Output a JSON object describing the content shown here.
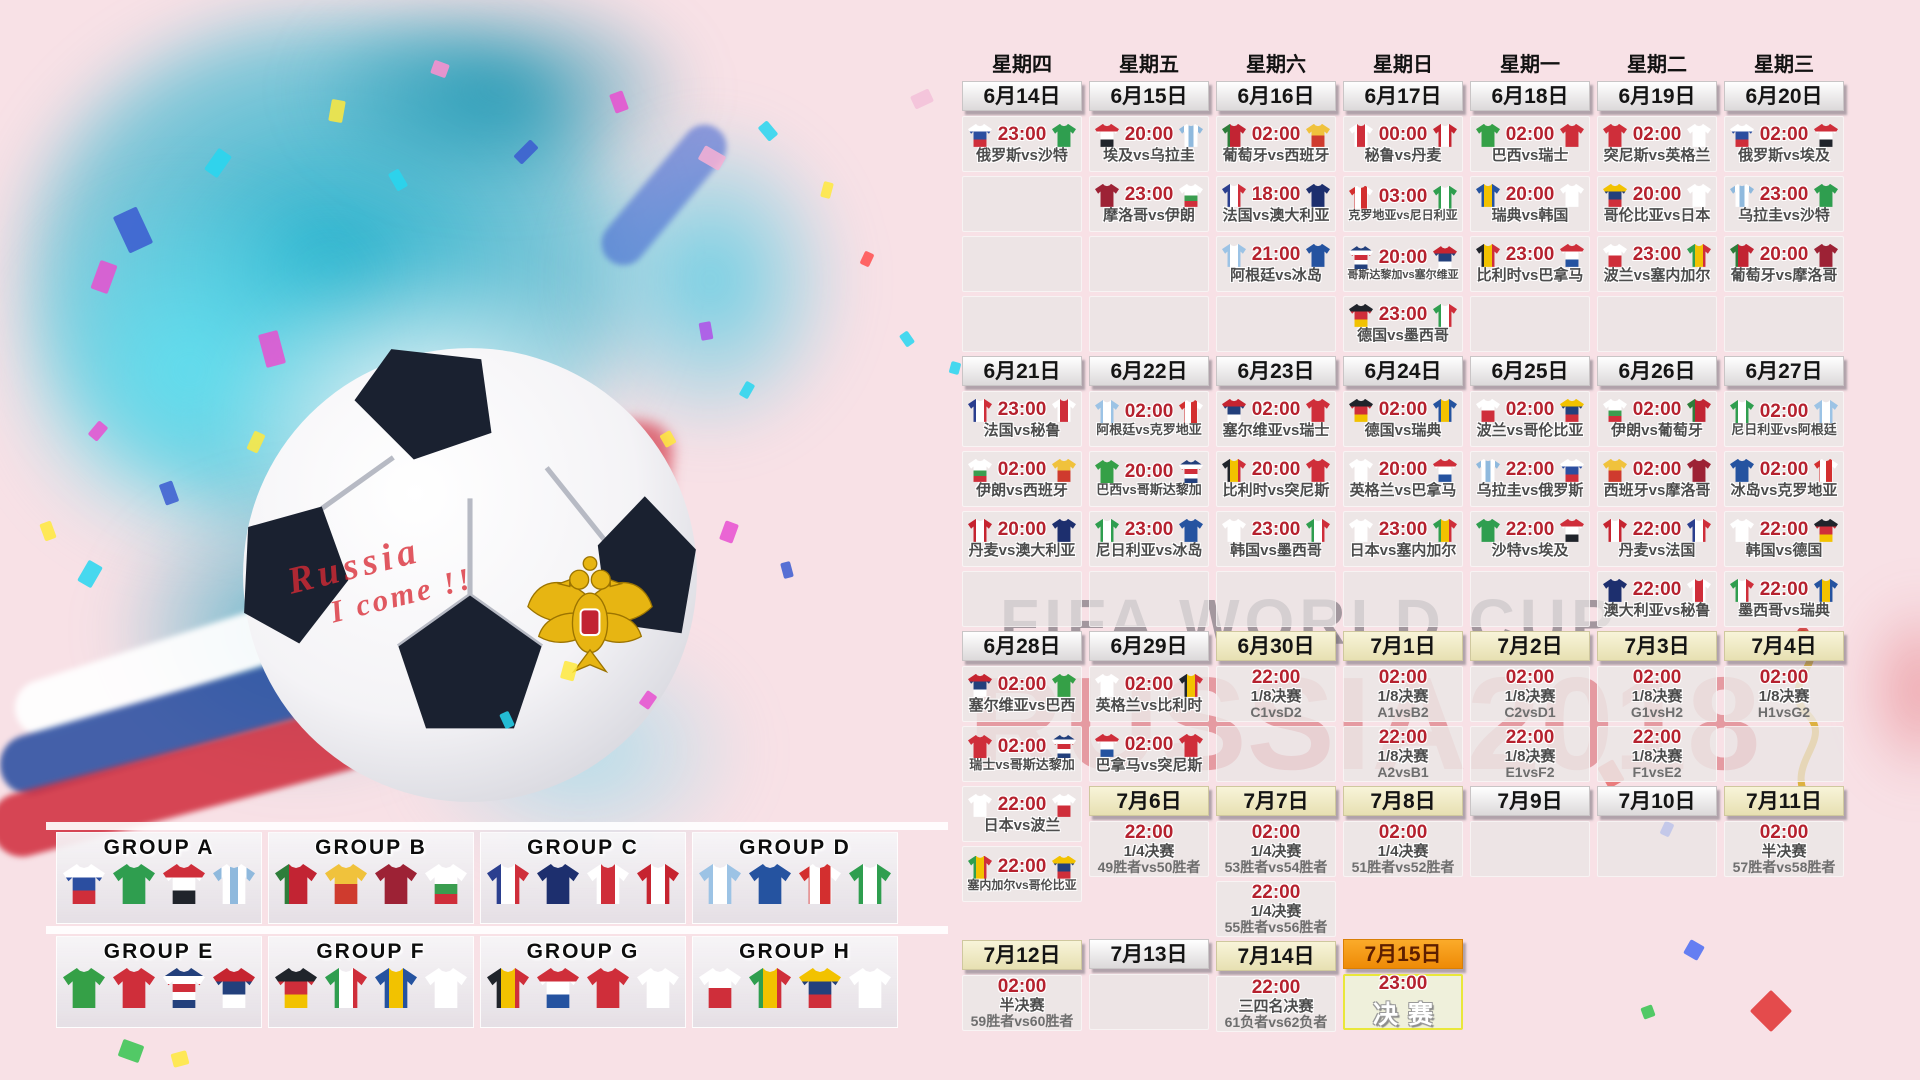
{
  "vs_label": "vs",
  "watermark": {
    "line1": "FIFA WORLD CUP",
    "line2": "RUSSIA2018"
  },
  "ball_text": {
    "line1": "Russia",
    "line2": "I come !!"
  },
  "palette": {
    "background_pink": "#f8e1e6",
    "splash_teal": "#19b4cd",
    "time_red": "#b5212e",
    "date_plain": "#ffffff",
    "date_cream": "#f1ecc8",
    "date_orange": "#f59a1d",
    "final_border_yellow": "#e9e73a",
    "watermark_red": "#c61c28"
  },
  "weekdays": [
    "星期四",
    "星期五",
    "星期六",
    "星期日",
    "星期一",
    "星期二",
    "星期三"
  ],
  "teams": {
    "俄罗斯": {
      "d": "v",
      "c": [
        "#ffffff",
        "#2b4ea0",
        "#cf2e3a"
      ]
    },
    "沙特": {
      "d": "v",
      "c": [
        "#2f9e4f"
      ]
    },
    "埃及": {
      "d": "v",
      "c": [
        "#cf2e3a",
        "#ffffff",
        "#20242b"
      ]
    },
    "乌拉圭": {
      "d": "h",
      "c": [
        "#8fb9dd",
        "#ffffff",
        "#8fb9dd",
        "#ffffff",
        "#8fb9dd"
      ]
    },
    "葡萄牙": {
      "d": "h",
      "c": [
        "#2e7d3a",
        "#c22433",
        "#c22433"
      ]
    },
    "西班牙": {
      "d": "v",
      "c": [
        "#f0c23c",
        "#cf3b2e"
      ]
    },
    "摩洛哥": {
      "d": "v",
      "c": [
        "#9d2235"
      ]
    },
    "伊朗": {
      "d": "v",
      "c": [
        "#ffffff",
        "#ffffff",
        "#3a9d4f",
        "#cf2e3a"
      ]
    },
    "法国": {
      "d": "h",
      "c": [
        "#2b3f8f",
        "#ffffff",
        "#cf2e3a"
      ]
    },
    "澳大利亚": {
      "d": "v",
      "c": [
        "#1d2f6e"
      ]
    },
    "阿根廷": {
      "d": "h",
      "c": [
        "#9cc3e5",
        "#ffffff",
        "#9cc3e5"
      ]
    },
    "冰岛": {
      "d": "v",
      "c": [
        "#2553a0"
      ]
    },
    "秘鲁": {
      "d": "h",
      "c": [
        "#ffffff",
        "#cf2e3a",
        "#ffffff"
      ]
    },
    "丹麦": {
      "d": "h",
      "c": [
        "#c62430",
        "#ffffff",
        "#c62430"
      ]
    },
    "克罗地亚": {
      "d": "h",
      "c": [
        "#d32f2f",
        "#ffffff",
        "#d32f2f",
        "#ffffff"
      ]
    },
    "尼日利亚": {
      "d": "h",
      "c": [
        "#2f9e4f",
        "#ffffff",
        "#2f9e4f"
      ]
    },
    "哥斯达黎加": {
      "d": "v",
      "c": [
        "#23407c",
        "#ffffff",
        "#cf2e3a",
        "#ffffff",
        "#23407c"
      ]
    },
    "塞尔维亚": {
      "d": "v",
      "c": [
        "#c62430",
        "#23407c",
        "#ffffff"
      ]
    },
    "德国": {
      "d": "v",
      "c": [
        "#20242b",
        "#cf2e3a",
        "#f2c200"
      ]
    },
    "墨西哥": {
      "d": "h",
      "c": [
        "#2f9e4f",
        "#ffffff",
        "#cf2e3a"
      ]
    },
    "巴西": {
      "d": "v",
      "c": [
        "#35a047"
      ]
    },
    "瑞士": {
      "d": "v",
      "c": [
        "#cf2e3a"
      ]
    },
    "瑞典": {
      "d": "h",
      "c": [
        "#2553a0",
        "#f2c200",
        "#2553a0"
      ]
    },
    "韩国": {
      "d": "v",
      "c": [
        "#ffffff"
      ]
    },
    "比利时": {
      "d": "h",
      "c": [
        "#20242b",
        "#f2c200",
        "#cf2e3a"
      ]
    },
    "巴拿马": {
      "d": "v",
      "c": [
        "#cf2e3a",
        "#ffffff",
        "#2553a0"
      ]
    },
    "突尼斯": {
      "d": "v",
      "c": [
        "#cf2e3a"
      ]
    },
    "英格兰": {
      "d": "v",
      "c": [
        "#ffffff"
      ]
    },
    "哥伦比亚": {
      "d": "v",
      "c": [
        "#f2c200",
        "#23407c",
        "#cf2e3a"
      ]
    },
    "日本": {
      "d": "v",
      "c": [
        "#ffffff"
      ]
    },
    "波兰": {
      "d": "v",
      "c": [
        "#ffffff",
        "#cf2e3a"
      ]
    },
    "塞内加尔": {
      "d": "h",
      "c": [
        "#2f9e4f",
        "#f2c200",
        "#cf2e3a"
      ]
    }
  },
  "columns": [
    {
      "items": [
        {
          "t": "d",
          "l": "6月14日",
          "v": "plain"
        },
        {
          "t": "m",
          "ti": "23:00",
          "h": "俄罗斯",
          "a": "沙特"
        },
        {
          "t": "e"
        },
        {
          "t": "e"
        },
        {
          "t": "e"
        },
        {
          "t": "d",
          "l": "6月21日",
          "v": "plain"
        },
        {
          "t": "m",
          "ti": "23:00",
          "h": "法国",
          "a": "秘鲁"
        },
        {
          "t": "m",
          "ti": "02:00",
          "h": "伊朗",
          "a": "西班牙"
        },
        {
          "t": "m",
          "ti": "20:00",
          "h": "丹麦",
          "a": "澳大利亚"
        },
        {
          "t": "e"
        },
        {
          "t": "d",
          "l": "6月28日",
          "v": "plain"
        },
        {
          "t": "m",
          "ti": "02:00",
          "h": "塞尔维亚",
          "a": "巴西"
        },
        {
          "t": "m",
          "ti": "02:00",
          "h": "瑞士",
          "a": "哥斯达黎加"
        },
        {
          "t": "m",
          "ti": "22:00",
          "h": "日本",
          "a": "波兰"
        },
        {
          "t": "m",
          "ti": "22:00",
          "h": "塞内加尔",
          "a": "哥伦比亚"
        },
        {
          "t": "s",
          "hp": 34
        },
        {
          "t": "d",
          "l": "7月12日",
          "v": "cream"
        },
        {
          "t": "k",
          "ti": "02:00",
          "r": "半决赛",
          "f": "59胜者vs60胜者"
        }
      ]
    },
    {
      "items": [
        {
          "t": "d",
          "l": "6月15日",
          "v": "plain"
        },
        {
          "t": "m",
          "ti": "20:00",
          "h": "埃及",
          "a": "乌拉圭"
        },
        {
          "t": "m",
          "ti": "23:00",
          "h": "摩洛哥",
          "a": "伊朗"
        },
        {
          "t": "e"
        },
        {
          "t": "e"
        },
        {
          "t": "d",
          "l": "6月22日",
          "v": "plain"
        },
        {
          "t": "m",
          "ti": "02:00",
          "h": "阿根廷",
          "a": "克罗地亚"
        },
        {
          "t": "m",
          "ti": "20:00",
          "h": "巴西",
          "a": "哥斯达黎加"
        },
        {
          "t": "m",
          "ti": "23:00",
          "h": "尼日利亚",
          "a": "冰岛"
        },
        {
          "t": "e"
        },
        {
          "t": "d",
          "l": "6月29日",
          "v": "plain"
        },
        {
          "t": "m",
          "ti": "02:00",
          "h": "英格兰",
          "a": "比利时"
        },
        {
          "t": "m",
          "ti": "02:00",
          "h": "巴拿马",
          "a": "突尼斯"
        },
        {
          "t": "d",
          "l": "7月6日",
          "v": "cream"
        },
        {
          "t": "k",
          "ti": "22:00",
          "r": "1/4决赛",
          "f": "49胜者vs50胜者"
        },
        {
          "t": "s",
          "hp": 58
        },
        {
          "t": "d",
          "l": "7月13日",
          "v": "plain"
        },
        {
          "t": "e"
        }
      ]
    },
    {
      "items": [
        {
          "t": "d",
          "l": "6月16日",
          "v": "plain"
        },
        {
          "t": "m",
          "ti": "02:00",
          "h": "葡萄牙",
          "a": "西班牙"
        },
        {
          "t": "m",
          "ti": "18:00",
          "h": "法国",
          "a": "澳大利亚"
        },
        {
          "t": "m",
          "ti": "21:00",
          "h": "阿根廷",
          "a": "冰岛"
        },
        {
          "t": "e"
        },
        {
          "t": "d",
          "l": "6月23日",
          "v": "plain"
        },
        {
          "t": "m",
          "ti": "02:00",
          "h": "塞尔维亚",
          "a": "瑞士"
        },
        {
          "t": "m",
          "ti": "20:00",
          "h": "比利时",
          "a": "突尼斯"
        },
        {
          "t": "m",
          "ti": "23:00",
          "h": "韩国",
          "a": "墨西哥"
        },
        {
          "t": "e"
        },
        {
          "t": "d",
          "l": "6月30日",
          "v": "cream"
        },
        {
          "t": "k",
          "ti": "22:00",
          "r": "1/8决赛",
          "f": "C1vsD2"
        },
        {
          "t": "e"
        },
        {
          "t": "d",
          "l": "7月7日",
          "v": "cream"
        },
        {
          "t": "k",
          "ti": "02:00",
          "r": "1/4决赛",
          "f": "53胜者vs54胜者"
        },
        {
          "t": "k",
          "ti": "22:00",
          "r": "1/4决赛",
          "f": "55胜者vs56胜者"
        },
        {
          "t": "d",
          "l": "7月14日",
          "v": "cream"
        },
        {
          "t": "k",
          "ti": "22:00",
          "r": "三四名决赛",
          "f": "61负者vs62负者"
        }
      ]
    },
    {
      "items": [
        {
          "t": "d",
          "l": "6月17日",
          "v": "plain"
        },
        {
          "t": "m",
          "ti": "00:00",
          "h": "秘鲁",
          "a": "丹麦"
        },
        {
          "t": "m",
          "ti": "03:00",
          "h": "克罗地亚",
          "a": "尼日利亚"
        },
        {
          "t": "m",
          "ti": "20:00",
          "h": "哥斯达黎加",
          "a": "塞尔维亚"
        },
        {
          "t": "m",
          "ti": "23:00",
          "h": "德国",
          "a": "墨西哥"
        },
        {
          "t": "d",
          "l": "6月24日",
          "v": "plain"
        },
        {
          "t": "m",
          "ti": "02:00",
          "h": "德国",
          "a": "瑞典"
        },
        {
          "t": "m",
          "ti": "20:00",
          "h": "英格兰",
          "a": "巴拿马"
        },
        {
          "t": "m",
          "ti": "23:00",
          "h": "日本",
          "a": "塞内加尔"
        },
        {
          "t": "e"
        },
        {
          "t": "d",
          "l": "7月1日",
          "v": "cream"
        },
        {
          "t": "k",
          "ti": "02:00",
          "r": "1/8决赛",
          "f": "A1vsB2"
        },
        {
          "t": "k",
          "ti": "22:00",
          "r": "1/8决赛",
          "f": "A2vsB1"
        },
        {
          "t": "d",
          "l": "7月8日",
          "v": "cream"
        },
        {
          "t": "k",
          "ti": "02:00",
          "r": "1/4决赛",
          "f": "51胜者vs52胜者"
        },
        {
          "t": "s",
          "hp": 58
        },
        {
          "t": "d",
          "l": "7月15日",
          "v": "orange"
        },
        {
          "t": "f",
          "ti": "23:00",
          "l": "决赛"
        }
      ]
    },
    {
      "items": [
        {
          "t": "d",
          "l": "6月18日",
          "v": "plain"
        },
        {
          "t": "m",
          "ti": "02:00",
          "h": "巴西",
          "a": "瑞士"
        },
        {
          "t": "m",
          "ti": "20:00",
          "h": "瑞典",
          "a": "韩国"
        },
        {
          "t": "m",
          "ti": "23:00",
          "h": "比利时",
          "a": "巴拿马"
        },
        {
          "t": "e"
        },
        {
          "t": "d",
          "l": "6月25日",
          "v": "plain"
        },
        {
          "t": "m",
          "ti": "02:00",
          "h": "波兰",
          "a": "哥伦比亚"
        },
        {
          "t": "m",
          "ti": "22:00",
          "h": "乌拉圭",
          "a": "俄罗斯"
        },
        {
          "t": "m",
          "ti": "22:00",
          "h": "沙特",
          "a": "埃及"
        },
        {
          "t": "e"
        },
        {
          "t": "d",
          "l": "7月2日",
          "v": "cream"
        },
        {
          "t": "k",
          "ti": "02:00",
          "r": "1/8决赛",
          "f": "C2vsD1"
        },
        {
          "t": "k",
          "ti": "22:00",
          "r": "1/8决赛",
          "f": "E1vsF2"
        },
        {
          "t": "d",
          "l": "7月9日",
          "v": "plain"
        },
        {
          "t": "e"
        }
      ]
    },
    {
      "items": [
        {
          "t": "d",
          "l": "6月19日",
          "v": "plain"
        },
        {
          "t": "m",
          "ti": "02:00",
          "h": "突尼斯",
          "a": "英格兰"
        },
        {
          "t": "m",
          "ti": "20:00",
          "h": "哥伦比亚",
          "a": "日本"
        },
        {
          "t": "m",
          "ti": "23:00",
          "h": "波兰",
          "a": "塞内加尔"
        },
        {
          "t": "e"
        },
        {
          "t": "d",
          "l": "6月26日",
          "v": "plain"
        },
        {
          "t": "m",
          "ti": "02:00",
          "h": "伊朗",
          "a": "葡萄牙"
        },
        {
          "t": "m",
          "ti": "02:00",
          "h": "西班牙",
          "a": "摩洛哥"
        },
        {
          "t": "m",
          "ti": "22:00",
          "h": "丹麦",
          "a": "法国"
        },
        {
          "t": "m",
          "ti": "22:00",
          "h": "澳大利亚",
          "a": "秘鲁"
        },
        {
          "t": "d",
          "l": "7月3日",
          "v": "cream"
        },
        {
          "t": "k",
          "ti": "02:00",
          "r": "1/8决赛",
          "f": "G1vsH2"
        },
        {
          "t": "k",
          "ti": "22:00",
          "r": "1/8决赛",
          "f": "F1vsE2"
        },
        {
          "t": "d",
          "l": "7月10日",
          "v": "plain"
        },
        {
          "t": "e"
        }
      ]
    },
    {
      "items": [
        {
          "t": "d",
          "l": "6月20日",
          "v": "plain"
        },
        {
          "t": "m",
          "ti": "02:00",
          "h": "俄罗斯",
          "a": "埃及"
        },
        {
          "t": "m",
          "ti": "23:00",
          "h": "乌拉圭",
          "a": "沙特"
        },
        {
          "t": "m",
          "ti": "20:00",
          "h": "葡萄牙",
          "a": "摩洛哥"
        },
        {
          "t": "e"
        },
        {
          "t": "d",
          "l": "6月27日",
          "v": "plain"
        },
        {
          "t": "m",
          "ti": "02:00",
          "h": "尼日利亚",
          "a": "阿根廷"
        },
        {
          "t": "m",
          "ti": "02:00",
          "h": "冰岛",
          "a": "克罗地亚"
        },
        {
          "t": "m",
          "ti": "22:00",
          "h": "韩国",
          "a": "德国"
        },
        {
          "t": "m",
          "ti": "22:00",
          "h": "墨西哥",
          "a": "瑞典"
        },
        {
          "t": "d",
          "l": "7月4日",
          "v": "cream"
        },
        {
          "t": "k",
          "ti": "02:00",
          "r": "1/8决赛",
          "f": "H1vsG2"
        },
        {
          "t": "e"
        },
        {
          "t": "d",
          "l": "7月11日",
          "v": "cream"
        },
        {
          "t": "k",
          "ti": "02:00",
          "r": "半决赛",
          "f": "57胜者vs58胜者"
        }
      ]
    }
  ],
  "groups": [
    {
      "label": "GROUP A",
      "teams": [
        "俄罗斯",
        "沙特",
        "埃及",
        "乌拉圭"
      ]
    },
    {
      "label": "GROUP B",
      "teams": [
        "葡萄牙",
        "西班牙",
        "摩洛哥",
        "伊朗"
      ]
    },
    {
      "label": "GROUP C",
      "teams": [
        "法国",
        "澳大利亚",
        "秘鲁",
        "丹麦"
      ]
    },
    {
      "label": "GROUP D",
      "teams": [
        "阿根廷",
        "冰岛",
        "克罗地亚",
        "尼日利亚"
      ]
    },
    {
      "label": "GROUP E",
      "teams": [
        "巴西",
        "瑞士",
        "哥斯达黎加",
        "塞尔维亚"
      ]
    },
    {
      "label": "GROUP F",
      "teams": [
        "德国",
        "墨西哥",
        "瑞典",
        "韩国"
      ]
    },
    {
      "label": "GROUP G",
      "teams": [
        "比利时",
        "巴拿马",
        "突尼斯",
        "英格兰"
      ]
    },
    {
      "label": "GROUP H",
      "teams": [
        "波兰",
        "塞内加尔",
        "哥伦比亚",
        "日本"
      ]
    }
  ]
}
